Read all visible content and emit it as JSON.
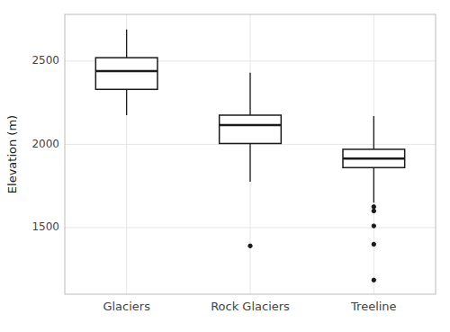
{
  "chart_data": {
    "type": "box",
    "categories": [
      "Glaciers",
      "Rock Glaciers",
      "Treeline"
    ],
    "boxes": [
      {
        "med": 2440,
        "q1": 2330,
        "q3": 2520,
        "whislo": 2175,
        "whishi": 2690,
        "fliers": []
      },
      {
        "med": 2115,
        "q1": 2005,
        "q3": 2175,
        "whislo": 1775,
        "whishi": 2430,
        "fliers": [
          1390
        ]
      },
      {
        "med": 1915,
        "q1": 1860,
        "q3": 1970,
        "whislo": 1650,
        "whishi": 2170,
        "fliers": [
          1625,
          1600,
          1510,
          1400,
          1185
        ]
      }
    ],
    "ylabel": "Elevation (m)",
    "ylim": [
      1100,
      2780
    ],
    "yticks": [
      1500,
      2000,
      2500
    ],
    "color": "#1a1a1a",
    "grid": true
  }
}
